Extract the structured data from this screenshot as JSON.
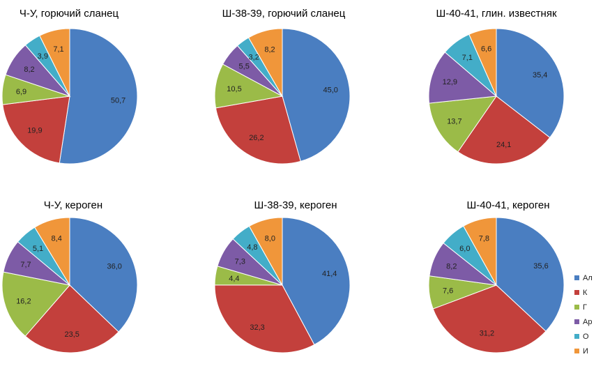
{
  "chart_data": [
    {
      "type": "pie",
      "title": "Ч-У, горючий сланец",
      "categories": [
        "Ал",
        "К",
        "Г",
        "Ар",
        "О",
        "И"
      ],
      "values": [
        50.7,
        19.9,
        6.9,
        8.2,
        3.9,
        7.1
      ],
      "labels": [
        "50,7",
        "19,9",
        "6,9",
        "8,2",
        "3,9",
        "7,1"
      ]
    },
    {
      "type": "pie",
      "title": "Ш-38-39, горючий сланец",
      "categories": [
        "Ал",
        "К",
        "Г",
        "Ар",
        "О",
        "И"
      ],
      "values": [
        45.0,
        26.2,
        10.5,
        5.5,
        3.2,
        8.2
      ],
      "labels": [
        "45,0",
        "26,2",
        "10,5",
        "5,5",
        "3,2",
        "8,2"
      ]
    },
    {
      "type": "pie",
      "title": "Ш-40-41, глин. известняк",
      "categories": [
        "Ал",
        "К",
        "Г",
        "Ар",
        "О",
        "И"
      ],
      "values": [
        35.4,
        24.1,
        13.7,
        12.9,
        7.1,
        6.6
      ],
      "labels": [
        "35,4",
        "24,1",
        "13,7",
        "12,9",
        "7,1",
        "6,6"
      ]
    },
    {
      "type": "pie",
      "title": "Ч-У, кероген",
      "categories": [
        "Ал",
        "К",
        "Г",
        "Ар",
        "О",
        "И"
      ],
      "values": [
        36.0,
        23.5,
        16.2,
        7.7,
        5.1,
        8.4
      ],
      "labels": [
        "36,0",
        "23,5",
        "16,2",
        "7,7",
        "5,1",
        "8,4"
      ]
    },
    {
      "type": "pie",
      "title": "Ш-38-39, кероген",
      "categories": [
        "Ал",
        "К",
        "Г",
        "Ар",
        "О",
        "И"
      ],
      "values": [
        41.4,
        32.3,
        4.4,
        7.3,
        4.8,
        8.0
      ],
      "labels": [
        "41,4",
        "32,3",
        "4,4",
        "7,3",
        "4,8",
        "8,0"
      ]
    },
    {
      "type": "pie",
      "title": "Ш-40-41, кероген",
      "categories": [
        "Ал",
        "К",
        "Г",
        "Ар",
        "О",
        "И"
      ],
      "values": [
        35.6,
        31.2,
        7.6,
        8.2,
        6.0,
        7.8
      ],
      "labels": [
        "35,6",
        "31,2",
        "7,6",
        "8,2",
        "6,0",
        "7,8"
      ]
    }
  ],
  "legend": {
    "placement": "bottom-right",
    "items": [
      "Ал",
      "К",
      "Г",
      "Ар",
      "О",
      "И"
    ]
  },
  "colors": [
    "#4a7ec1",
    "#c3403c",
    "#9bbb48",
    "#7d5ba6",
    "#43adc8",
    "#f0963a"
  ]
}
